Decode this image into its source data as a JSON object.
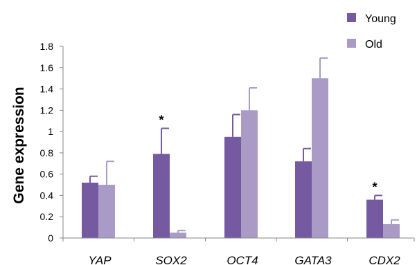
{
  "chart_data": {
    "type": "bar",
    "categories": [
      "YAP",
      "SOX2",
      "OCT4",
      "GATA3",
      "CDX2"
    ],
    "series": [
      {
        "name": "Young",
        "color": "#7559a1",
        "values": [
          0.52,
          0.79,
          0.95,
          0.72,
          0.36
        ],
        "errors": [
          0.06,
          0.24,
          0.21,
          0.12,
          0.04
        ]
      },
      {
        "name": "Old",
        "color": "#a99bc5",
        "values": [
          0.5,
          0.05,
          1.2,
          1.5,
          0.13
        ],
        "errors": [
          0.22,
          0.02,
          0.21,
          0.19,
          0.04
        ]
      }
    ],
    "significance": [
      {
        "category": "SOX2",
        "series": "Young",
        "mark": "*"
      },
      {
        "category": "CDX2",
        "series": "Young",
        "mark": "*"
      }
    ],
    "ylabel": "Gene expression",
    "xlabel": "",
    "ylim": [
      0,
      1.8
    ],
    "yticks": [
      "0",
      "0.2",
      "0.4",
      "0.6",
      "0.8",
      "1",
      "1.2",
      "1.4",
      "1.6",
      "1.8"
    ],
    "grid": false,
    "legend_position": "top-right"
  }
}
